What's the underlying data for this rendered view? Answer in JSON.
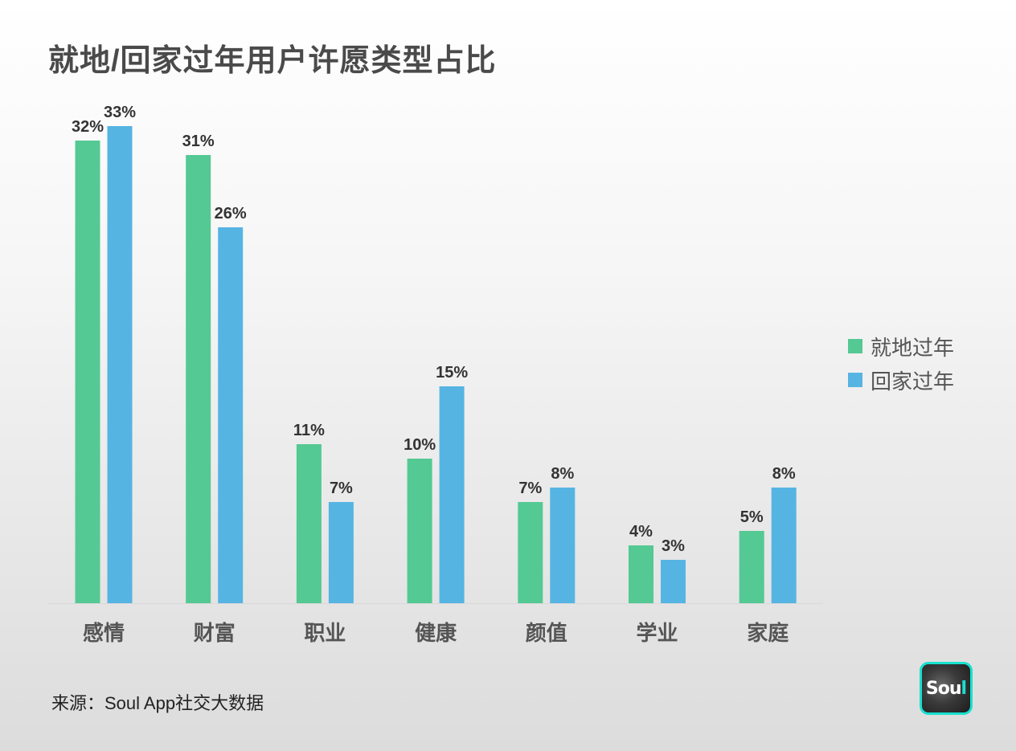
{
  "title": "就地/回家过年用户许愿类型占比",
  "source": "来源：Soul App社交大数据",
  "logo": {
    "text_main": "Sou",
    "text_accent": "l"
  },
  "colors": {
    "series1": "#54c993",
    "series2": "#56b4e3",
    "baseline": "#d9d9d9",
    "label": "#333333",
    "category": "#555555",
    "logo_border": "#19e0d0"
  },
  "chart_data": {
    "type": "bar",
    "categories": [
      "感情",
      "财富",
      "职业",
      "健康",
      "颜值",
      "学业",
      "家庭"
    ],
    "series": [
      {
        "name": "就地过年",
        "values": [
          32,
          31,
          11,
          10,
          7,
          4,
          5
        ],
        "labels": [
          "32%",
          "31%",
          "11%",
          "10%",
          "7%",
          "4%",
          "5%"
        ]
      },
      {
        "name": "回家过年",
        "values": [
          33,
          26,
          7,
          15,
          8,
          3,
          8
        ],
        "labels": [
          "33%",
          "26%",
          "7%",
          "15%",
          "8%",
          "3%",
          "8%"
        ]
      }
    ],
    "ylim": [
      0,
      33
    ],
    "grid": false,
    "legend_position": "right"
  }
}
